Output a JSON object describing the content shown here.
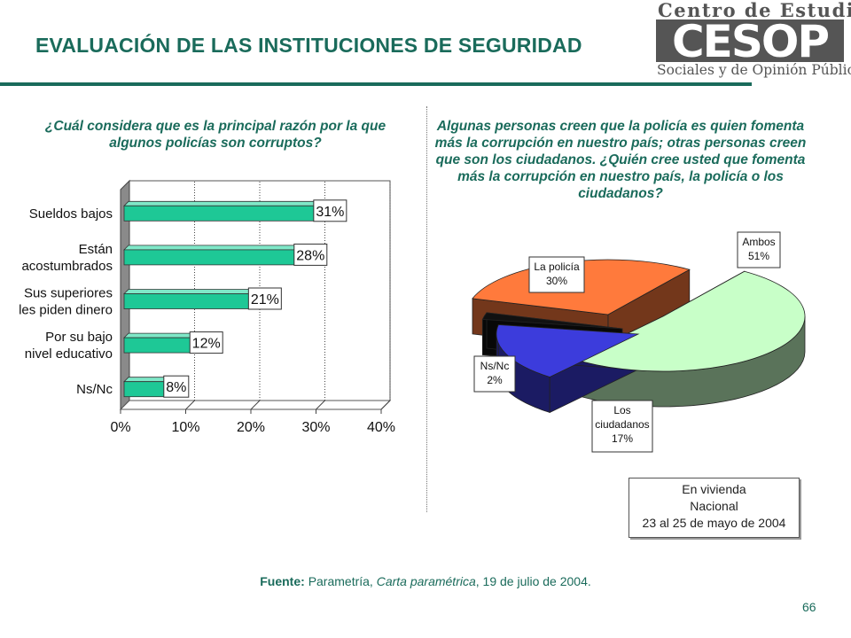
{
  "header": {
    "title": "EVALUACIÓN DE LAS INSTITUCIONES DE SEGURIDAD",
    "logo_top": "Centro de Estudios",
    "logo_mark": "CESOP",
    "logo_bottom": "Sociales y de Opinión Pública"
  },
  "left_panel": {
    "question": "¿Cuál considera que es la principal razón por la que algunos policías son corruptos?"
  },
  "right_panel": {
    "question": "Algunas personas creen que la policía es quien fomenta más la corrupción en nuestro país; otras personas creen que son los ciudadanos. ¿Quién cree usted que fomenta más la corrupción en nuestro país, la policía o los ciudadanos?"
  },
  "chart_data": [
    {
      "type": "bar",
      "orientation": "horizontal",
      "categories": [
        "Sueldos bajos",
        "Están acostumbrados",
        "Sus superiores les piden dinero",
        "Por su bajo nivel educativo",
        "Ns/Nc"
      ],
      "category_lines": [
        [
          "Sueldos bajos"
        ],
        [
          "Están",
          "acostumbrados"
        ],
        [
          "Sus superiores",
          "les piden dinero"
        ],
        [
          "Por su bajo",
          "nivel educativo"
        ],
        [
          "Ns/Nc"
        ]
      ],
      "values": [
        31,
        28,
        21,
        12,
        8
      ],
      "value_labels": [
        "31%",
        "28%",
        "21%",
        "12%",
        "8%"
      ],
      "xlim": [
        0,
        40
      ],
      "x_ticks": [
        0,
        10,
        20,
        30,
        40
      ],
      "x_tick_labels": [
        "0%",
        "10%",
        "20%",
        "30%",
        "40%"
      ],
      "grid": true,
      "colors": {
        "bar": "#1ec896",
        "bar_dark": "#0f7a5a",
        "wall": "#8a8a8a"
      }
    },
    {
      "type": "pie",
      "style": "3d-exploded",
      "slices": [
        {
          "label": "Ambos",
          "value": 51,
          "value_label": "51%",
          "color": "#c8ffc8"
        },
        {
          "label": "Los ciudadanos",
          "label_lines": [
            "Los",
            "ciudadanos"
          ],
          "value": 17,
          "value_label": "17%",
          "color": "#3c3cdc"
        },
        {
          "label": "Ns/Nc",
          "value": 2,
          "value_label": "2%",
          "color": "#111111"
        },
        {
          "label": "La policía",
          "value": 30,
          "value_label": "30%",
          "color": "#ff7a3c"
        }
      ]
    }
  ],
  "note": {
    "lines": [
      "En vivienda",
      "Nacional",
      "23 al 25 de mayo de 2004"
    ]
  },
  "footer": {
    "source_label": "Fuente:",
    "source_org": "Parametría,",
    "source_pub": "Carta paramétrica",
    "source_date": ", 19 de julio de 2004.",
    "page_number": "66"
  }
}
